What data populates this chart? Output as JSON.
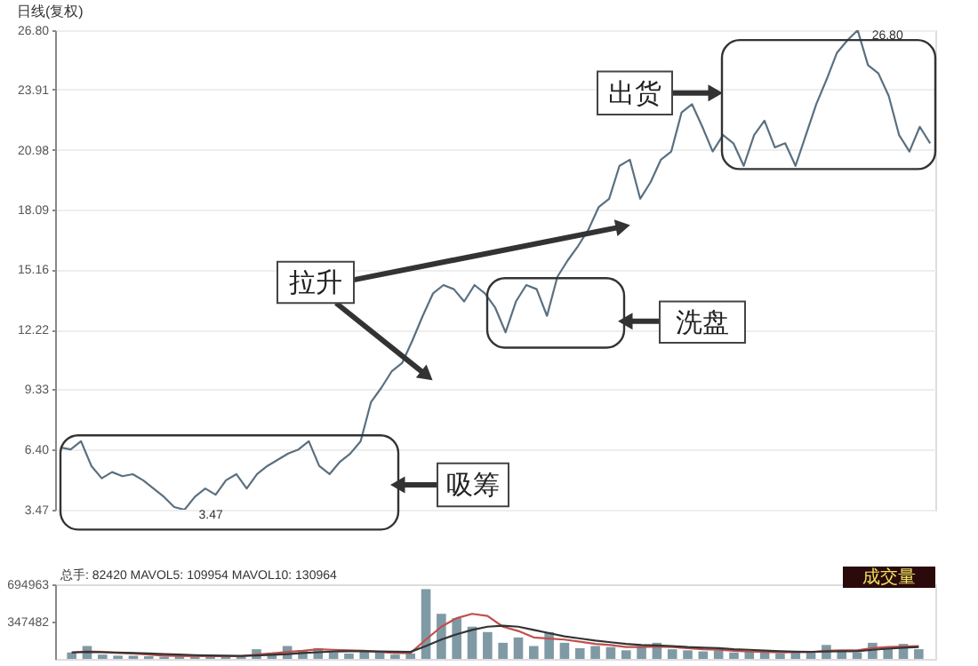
{
  "chart_data": [
    {
      "type": "line",
      "title": "日线(复权)",
      "tick_labels": "y",
      "grid": "y",
      "marker": "none",
      "line_style": "solid",
      "categories": [
        null,
        null,
        null,
        null,
        null,
        null,
        null,
        null,
        null,
        null,
        null,
        null,
        null,
        null,
        null,
        null,
        null,
        null,
        null,
        null,
        null,
        null,
        null,
        null,
        null,
        null,
        null,
        null,
        null,
        null,
        null,
        null,
        null,
        null,
        null,
        null,
        null,
        null,
        null,
        null,
        null,
        null,
        null,
        null,
        null,
        null,
        null,
        null,
        null,
        null,
        null,
        null,
        null,
        null,
        null,
        null,
        null,
        null,
        null,
        null,
        null,
        null,
        null,
        null,
        null,
        null,
        null,
        null,
        null,
        null,
        null,
        null,
        null,
        null,
        null,
        null,
        null,
        null,
        null,
        null,
        null,
        null,
        null,
        null,
        null
      ],
      "series": [
        {
          "color": "#5a7080",
          "values": [
            6.5,
            6.4,
            6.8,
            5.6,
            5.0,
            5.3,
            5.1,
            5.2,
            4.9,
            4.5,
            4.1,
            3.6,
            3.47,
            4.1,
            4.5,
            4.2,
            4.9,
            5.2,
            4.5,
            5.2,
            5.6,
            5.9,
            6.2,
            6.4,
            6.8,
            5.6,
            5.2,
            5.8,
            6.2,
            6.8,
            8.7,
            9.4,
            10.2,
            10.6,
            11.7,
            12.9,
            14.0,
            14.4,
            14.2,
            13.6,
            14.4,
            14.0,
            13.3,
            12.1,
            13.6,
            14.4,
            14.2,
            12.9,
            14.8,
            15.6,
            16.3,
            17.1,
            18.2,
            18.6,
            20.2,
            20.5,
            18.6,
            19.4,
            20.5,
            20.9,
            22.8,
            23.2,
            22.1,
            20.9,
            21.7,
            21.3,
            20.2,
            21.7,
            22.4,
            21.1,
            21.3,
            20.2,
            21.7,
            23.2,
            24.4,
            25.7,
            26.3,
            26.8,
            25.1,
            24.7,
            23.6,
            21.7,
            20.9,
            22.1,
            21.3
          ]
        }
      ],
      "ylim": [
        3.47,
        26.8
      ],
      "yticks": [
        3.47,
        {
          "value": 6.4,
          "label": "6.40"
        },
        9.33,
        12.22,
        15.16,
        18.09,
        20.98,
        23.91,
        {
          "value": 26.8,
          "label": "26.80"
        }
      ],
      "annotations": [
        "吸筹",
        "拉升",
        "洗盘",
        "出货",
        "26.80",
        "3.47"
      ]
    },
    {
      "type": "bar",
      "tick_labels": "y",
      "grid": false,
      "categories": [
        null,
        null,
        null,
        null,
        null,
        null,
        null,
        null,
        null,
        null,
        null,
        null,
        null,
        null,
        null,
        null,
        null,
        null,
        null,
        null,
        null,
        null,
        null,
        null,
        null,
        null,
        null,
        null,
        null,
        null,
        null,
        null,
        null,
        null,
        null,
        null,
        null,
        null,
        null,
        null,
        null,
        null,
        null,
        null,
        null,
        null,
        null,
        null,
        null,
        null,
        null,
        null,
        null,
        null,
        null,
        null
      ],
      "series": [
        {
          "color": "#7f9aa5",
          "values": [
            60000,
            120000,
            40000,
            30000,
            30000,
            25000,
            20000,
            30000,
            20000,
            25000,
            30000,
            20000,
            90000,
            60000,
            120000,
            80000,
            100000,
            60000,
            50000,
            70000,
            60000,
            40000,
            50000,
            650000,
            420000,
            380000,
            300000,
            250000,
            150000,
            200000,
            120000,
            250000,
            150000,
            100000,
            120000,
            110000,
            80000,
            120000,
            150000,
            90000,
            80000,
            70000,
            80000,
            60000,
            70000,
            60000,
            50000,
            70000,
            60000,
            130000,
            80000,
            60000,
            150000,
            110000,
            140000,
            90000
          ]
        },
        {
          "type": "line",
          "color": "#c0504d",
          "values": [
            60000,
            70000,
            65000,
            55000,
            50000,
            40000,
            30000,
            28000,
            25000,
            25000,
            25000,
            25000,
            40000,
            50000,
            65000,
            75000,
            90000,
            85000,
            80000,
            75000,
            65000,
            55000,
            55000,
            180000,
            300000,
            380000,
            420000,
            400000,
            300000,
            260000,
            200000,
            190000,
            180000,
            160000,
            140000,
            130000,
            110000,
            110000,
            115000,
            110000,
            100000,
            90000,
            85000,
            75000,
            70000,
            65000,
            60000,
            62000,
            62000,
            75000,
            80000,
            80000,
            100000,
            110000,
            115000,
            120000
          ]
        },
        {
          "type": "line",
          "color": "#333333",
          "values": [
            60000,
            65000,
            62000,
            60000,
            55000,
            50000,
            45000,
            40000,
            35000,
            32000,
            30000,
            28000,
            32000,
            38000,
            45000,
            55000,
            62000,
            70000,
            72000,
            72000,
            70000,
            68000,
            65000,
            120000,
            180000,
            230000,
            270000,
            300000,
            310000,
            300000,
            270000,
            240000,
            210000,
            190000,
            170000,
            155000,
            140000,
            130000,
            125000,
            120000,
            110000,
            105000,
            100000,
            90000,
            85000,
            78000,
            72000,
            68000,
            66000,
            70000,
            72000,
            72000,
            85000,
            95000,
            105000,
            110000
          ]
        }
      ],
      "ylim": [
        0,
        694963
      ],
      "yticks": [
        347482,
        694963
      ],
      "annotations": [
        "总手: 82420 MAVOL5: 109954 MAVOL10: 130964",
        "成交量"
      ]
    }
  ]
}
